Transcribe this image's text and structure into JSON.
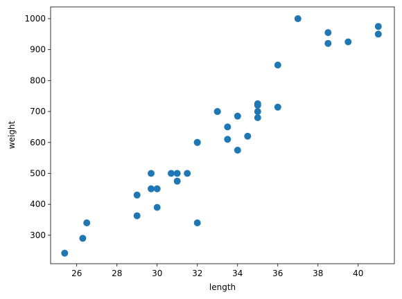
{
  "chart_data": {
    "type": "scatter",
    "title": "",
    "xlabel": "length",
    "ylabel": "weight",
    "xlim": [
      24.7,
      41.8
    ],
    "ylim": [
      208,
      1038
    ],
    "xticks": [
      26,
      28,
      30,
      32,
      34,
      36,
      38,
      40
    ],
    "yticks": [
      300,
      400,
      500,
      600,
      700,
      800,
      900,
      1000
    ],
    "grid": false,
    "marker_color": "#1f77b4",
    "points": [
      {
        "x": 25.4,
        "y": 242
      },
      {
        "x": 26.3,
        "y": 290
      },
      {
        "x": 26.5,
        "y": 340
      },
      {
        "x": 29.0,
        "y": 363
      },
      {
        "x": 29.0,
        "y": 430
      },
      {
        "x": 29.7,
        "y": 450
      },
      {
        "x": 29.7,
        "y": 500
      },
      {
        "x": 30.0,
        "y": 390
      },
      {
        "x": 30.0,
        "y": 450
      },
      {
        "x": 30.7,
        "y": 500
      },
      {
        "x": 31.0,
        "y": 475
      },
      {
        "x": 31.0,
        "y": 500
      },
      {
        "x": 31.5,
        "y": 500
      },
      {
        "x": 32.0,
        "y": 340
      },
      {
        "x": 32.0,
        "y": 600
      },
      {
        "x": 32.0,
        "y": 600
      },
      {
        "x": 33.0,
        "y": 700
      },
      {
        "x": 33.0,
        "y": 700
      },
      {
        "x": 33.5,
        "y": 610
      },
      {
        "x": 33.5,
        "y": 650
      },
      {
        "x": 34.0,
        "y": 575
      },
      {
        "x": 34.0,
        "y": 685
      },
      {
        "x": 34.5,
        "y": 620
      },
      {
        "x": 35.0,
        "y": 680
      },
      {
        "x": 35.0,
        "y": 700
      },
      {
        "x": 35.0,
        "y": 725
      },
      {
        "x": 35.0,
        "y": 720
      },
      {
        "x": 36.0,
        "y": 714
      },
      {
        "x": 36.0,
        "y": 850
      },
      {
        "x": 37.0,
        "y": 1000
      },
      {
        "x": 38.5,
        "y": 920
      },
      {
        "x": 38.5,
        "y": 955
      },
      {
        "x": 39.5,
        "y": 925
      },
      {
        "x": 41.0,
        "y": 975
      },
      {
        "x": 41.0,
        "y": 950
      }
    ]
  }
}
